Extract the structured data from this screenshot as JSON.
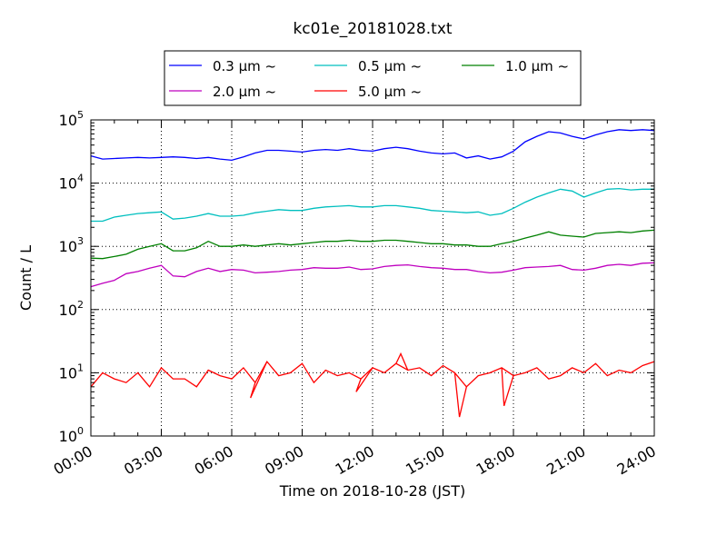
{
  "chart_data": {
    "type": "line",
    "title": "kc01e_20181028.txt",
    "xlabel": "Time on 2018-10-28 (JST)",
    "ylabel": "Count / L",
    "x_range_hours": [
      0,
      24
    ],
    "x_ticks": [
      "00:00",
      "03:00",
      "06:00",
      "09:00",
      "12:00",
      "15:00",
      "18:00",
      "21:00",
      "24:00"
    ],
    "y_scale": "log",
    "ylim": [
      1,
      100000
    ],
    "y_ticks": [
      {
        "base": "10",
        "exp": "0"
      },
      {
        "base": "10",
        "exp": "1"
      },
      {
        "base": "10",
        "exp": "2"
      },
      {
        "base": "10",
        "exp": "3"
      },
      {
        "base": "10",
        "exp": "4"
      },
      {
        "base": "10",
        "exp": "5"
      }
    ],
    "grid": true,
    "legend_placement": "top-center, above plot",
    "x": [
      0,
      0.5,
      1,
      1.5,
      2,
      2.5,
      3,
      3.5,
      4,
      4.5,
      5,
      5.5,
      6,
      6.5,
      7,
      7.5,
      8,
      8.5,
      9,
      9.5,
      10,
      10.5,
      11,
      11.5,
      12,
      12.5,
      13,
      13.5,
      14,
      14.5,
      15,
      15.5,
      16,
      16.5,
      17,
      17.5,
      18,
      18.5,
      19,
      19.5,
      20,
      20.5,
      21,
      21.5,
      22,
      22.5,
      23,
      23.5,
      24
    ],
    "series": [
      {
        "name": "0.3 μm ~",
        "color": "#0000ff",
        "values": [
          27000,
          24000,
          24500,
          25000,
          25500,
          25000,
          25500,
          26000,
          25500,
          24500,
          25500,
          24000,
          23000,
          26000,
          30000,
          33000,
          33000,
          32000,
          31000,
          33000,
          34000,
          33000,
          35000,
          33000,
          32000,
          35000,
          37000,
          35000,
          32000,
          30000,
          29000,
          30000,
          25000,
          27000,
          24000,
          26000,
          32000,
          45000,
          55000,
          65000,
          62000,
          55000,
          50000,
          58000,
          65000,
          70000,
          68000,
          70000,
          68000
        ]
      },
      {
        "name": "0.5 μm ~",
        "color": "#00bfbf",
        "values": [
          2500,
          2500,
          2900,
          3100,
          3300,
          3400,
          3500,
          2700,
          2800,
          3000,
          3300,
          3000,
          3000,
          3100,
          3400,
          3600,
          3800,
          3700,
          3700,
          4000,
          4200,
          4300,
          4400,
          4200,
          4200,
          4400,
          4400,
          4200,
          4000,
          3700,
          3600,
          3500,
          3400,
          3500,
          3100,
          3300,
          4000,
          5000,
          6000,
          7000,
          8000,
          7500,
          6000,
          7000,
          8000,
          8200,
          7800,
          8000,
          8000
        ]
      },
      {
        "name": "1.0 μm ~",
        "color": "#008000",
        "values": [
          650,
          640,
          690,
          750,
          900,
          1000,
          1100,
          850,
          850,
          950,
          1200,
          1000,
          1000,
          1050,
          1000,
          1050,
          1100,
          1050,
          1100,
          1150,
          1200,
          1200,
          1250,
          1200,
          1200,
          1250,
          1250,
          1200,
          1150,
          1100,
          1100,
          1050,
          1050,
          1000,
          1000,
          1100,
          1200,
          1350,
          1500,
          1700,
          1500,
          1450,
          1400,
          1600,
          1650,
          1700,
          1650,
          1750,
          1800
        ]
      },
      {
        "name": "2.0 μm ~",
        "color": "#bf00bf",
        "values": [
          230,
          260,
          290,
          370,
          400,
          450,
          500,
          340,
          330,
          400,
          450,
          400,
          430,
          420,
          380,
          390,
          400,
          420,
          430,
          460,
          450,
          450,
          470,
          430,
          440,
          480,
          500,
          510,
          480,
          460,
          450,
          430,
          430,
          400,
          380,
          390,
          420,
          460,
          470,
          480,
          500,
          430,
          420,
          450,
          500,
          520,
          500,
          540,
          550
        ]
      },
      {
        "name": "5.0 μm ~",
        "color": "#ff0000",
        "values": [
          6,
          10,
          8,
          7,
          10,
          6,
          12,
          8,
          8,
          6,
          11,
          9,
          8,
          12,
          7,
          15,
          9,
          10,
          14,
          7,
          11,
          9,
          10,
          8,
          12,
          10,
          14,
          11,
          12,
          9,
          13,
          10,
          6,
          9,
          10,
          12,
          9,
          10,
          12,
          8,
          9,
          12,
          10,
          14,
          9,
          11,
          10,
          13,
          15
        ]
      },
      {
        "name": "",
        "color": "#ff0000",
        "values": [
          null,
          null,
          null,
          null,
          null,
          null,
          null,
          null,
          null,
          null,
          null,
          null,
          null,
          null,
          null,
          null,
          null,
          null,
          null,
          null,
          null,
          null,
          null,
          null,
          null,
          null,
          null,
          null,
          null,
          null,
          null,
          null,
          null,
          null,
          null,
          null,
          null,
          null,
          null,
          null,
          null,
          null,
          null,
          null,
          null,
          null,
          null,
          null,
          null
        ]
      }
    ],
    "extra_points_5um": [
      {
        "x": 15.7,
        "y": 2
      },
      {
        "x": 17.6,
        "y": 3
      },
      {
        "x": 6.8,
        "y": 4
      },
      {
        "x": 11.3,
        "y": 5
      },
      {
        "x": 13.2,
        "y": 20
      }
    ]
  }
}
